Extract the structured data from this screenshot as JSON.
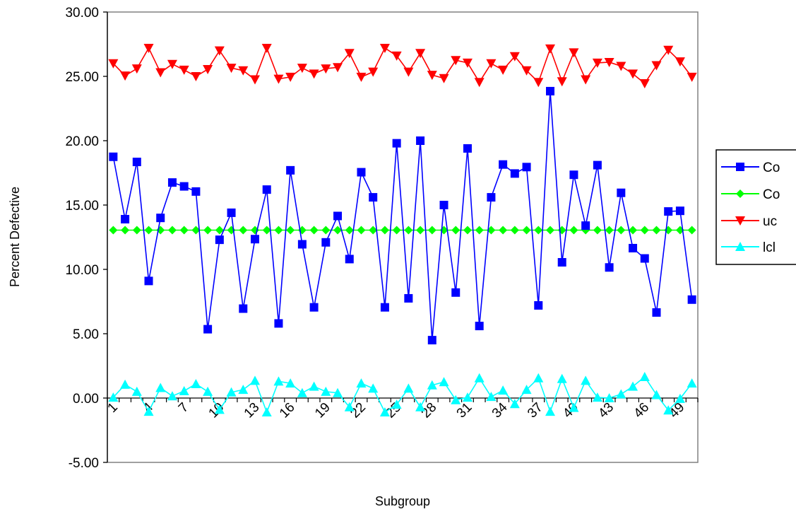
{
  "chart_data": {
    "type": "line",
    "xlabel": "Subgroup",
    "ylabel": "Percent Defective",
    "ylim": [
      -5,
      30
    ],
    "yticks": [
      "-5.00",
      "0.00",
      "5.00",
      "10.00",
      "15.00",
      "20.00",
      "25.00",
      "30.00"
    ],
    "x": [
      1,
      2,
      3,
      4,
      5,
      6,
      7,
      8,
      9,
      10,
      11,
      12,
      13,
      14,
      15,
      16,
      17,
      18,
      19,
      20,
      21,
      22,
      23,
      24,
      25,
      26,
      27,
      28,
      29,
      30,
      31,
      32,
      33,
      34,
      35,
      36,
      37,
      38,
      39,
      40,
      41,
      42,
      43,
      44,
      45,
      46,
      47,
      48,
      49,
      50
    ],
    "xtick_labels": [
      "1",
      "4",
      "7",
      "10",
      "13",
      "16",
      "19",
      "22",
      "25",
      "28",
      "31",
      "34",
      "37",
      "40",
      "43",
      "46",
      "49"
    ],
    "legend_position": "right",
    "grid": false,
    "series": [
      {
        "name": "Co",
        "color": "#0000FF",
        "marker": "square",
        "values": [
          18.75,
          13.9,
          18.35,
          9.1,
          14.0,
          16.75,
          16.45,
          16.05,
          5.35,
          12.3,
          14.4,
          6.95,
          12.35,
          16.2,
          5.8,
          17.7,
          11.95,
          7.05,
          12.1,
          14.15,
          10.8,
          17.55,
          15.6,
          7.05,
          19.8,
          7.75,
          20.0,
          4.5,
          15.0,
          8.2,
          19.4,
          5.6,
          15.6,
          18.15,
          17.45,
          17.95,
          7.2,
          23.85,
          10.55,
          17.35,
          13.4,
          18.1,
          10.15,
          15.95,
          11.65,
          10.85,
          6.65,
          14.5,
          14.55,
          7.65
        ]
      },
      {
        "name": "Co",
        "color": "#00FF00",
        "marker": "diamond",
        "values": [
          13.05,
          13.05,
          13.05,
          13.05,
          13.05,
          13.05,
          13.05,
          13.05,
          13.05,
          13.05,
          13.05,
          13.05,
          13.05,
          13.05,
          13.05,
          13.05,
          13.05,
          13.05,
          13.05,
          13.05,
          13.05,
          13.05,
          13.05,
          13.05,
          13.05,
          13.05,
          13.05,
          13.05,
          13.05,
          13.05,
          13.05,
          13.05,
          13.05,
          13.05,
          13.05,
          13.05,
          13.05,
          13.05,
          13.05,
          13.05,
          13.05,
          13.05,
          13.05,
          13.05,
          13.05,
          13.05,
          13.05,
          13.05,
          13.05,
          13.05
        ]
      },
      {
        "name": "uc",
        "color": "#FF0000",
        "marker": "triangle-down",
        "values": [
          26.0,
          25.05,
          25.6,
          27.2,
          25.3,
          25.95,
          25.5,
          25.0,
          25.55,
          27.0,
          25.65,
          25.45,
          24.75,
          27.2,
          24.8,
          24.95,
          25.65,
          25.2,
          25.6,
          25.7,
          26.8,
          24.95,
          25.35,
          27.2,
          26.6,
          25.35,
          26.8,
          25.1,
          24.85,
          26.25,
          26.05,
          24.55,
          26.0,
          25.5,
          26.55,
          25.45,
          24.55,
          27.15,
          24.6,
          26.85,
          24.75,
          26.05,
          26.1,
          25.8,
          25.2,
          24.45,
          25.85,
          27.05,
          26.15,
          24.95
        ]
      },
      {
        "name": "lcl",
        "color": "#00FFFF",
        "marker": "triangle-up",
        "values": [
          0.05,
          1.05,
          0.5,
          -1.05,
          0.8,
          0.15,
          0.55,
          1.1,
          0.5,
          -0.9,
          0.45,
          0.65,
          1.35,
          -1.1,
          1.3,
          1.15,
          0.4,
          0.9,
          0.5,
          0.4,
          -0.7,
          1.15,
          0.75,
          -1.1,
          -0.5,
          0.75,
          -0.7,
          1.0,
          1.25,
          -0.15,
          0.05,
          1.55,
          0.1,
          0.6,
          -0.45,
          0.65,
          1.55,
          -1.05,
          1.5,
          -0.75,
          1.35,
          0.05,
          0.0,
          0.3,
          0.9,
          1.65,
          0.25,
          -0.95,
          -0.05,
          1.15
        ]
      }
    ]
  }
}
